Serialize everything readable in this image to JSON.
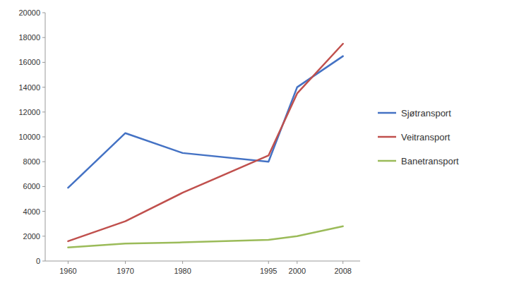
{
  "chart_data": {
    "type": "line",
    "x": [
      1960,
      1970,
      1980,
      1995,
      2000,
      2008
    ],
    "series": [
      {
        "name": "Sjøtransport",
        "color": "#4472C4",
        "values": [
          5900,
          10300,
          8700,
          8000,
          14000,
          16500
        ]
      },
      {
        "name": "Veitransport",
        "color": "#C0504D",
        "values": [
          1600,
          3200,
          5500,
          8500,
          13500,
          17500
        ]
      },
      {
        "name": "Banetransport",
        "color": "#9BBB59",
        "values": [
          1100,
          1400,
          1500,
          1700,
          2000,
          2800
        ]
      }
    ],
    "xlim": [
      1956,
      2011
    ],
    "xticks": [
      1960,
      1970,
      1980,
      1995,
      2000,
      2008
    ],
    "ylim": [
      0,
      20000
    ],
    "yticks": [
      0,
      2000,
      4000,
      6000,
      8000,
      10000,
      12000,
      14000,
      16000,
      18000,
      20000
    ],
    "grid": false,
    "legend": "right"
  }
}
